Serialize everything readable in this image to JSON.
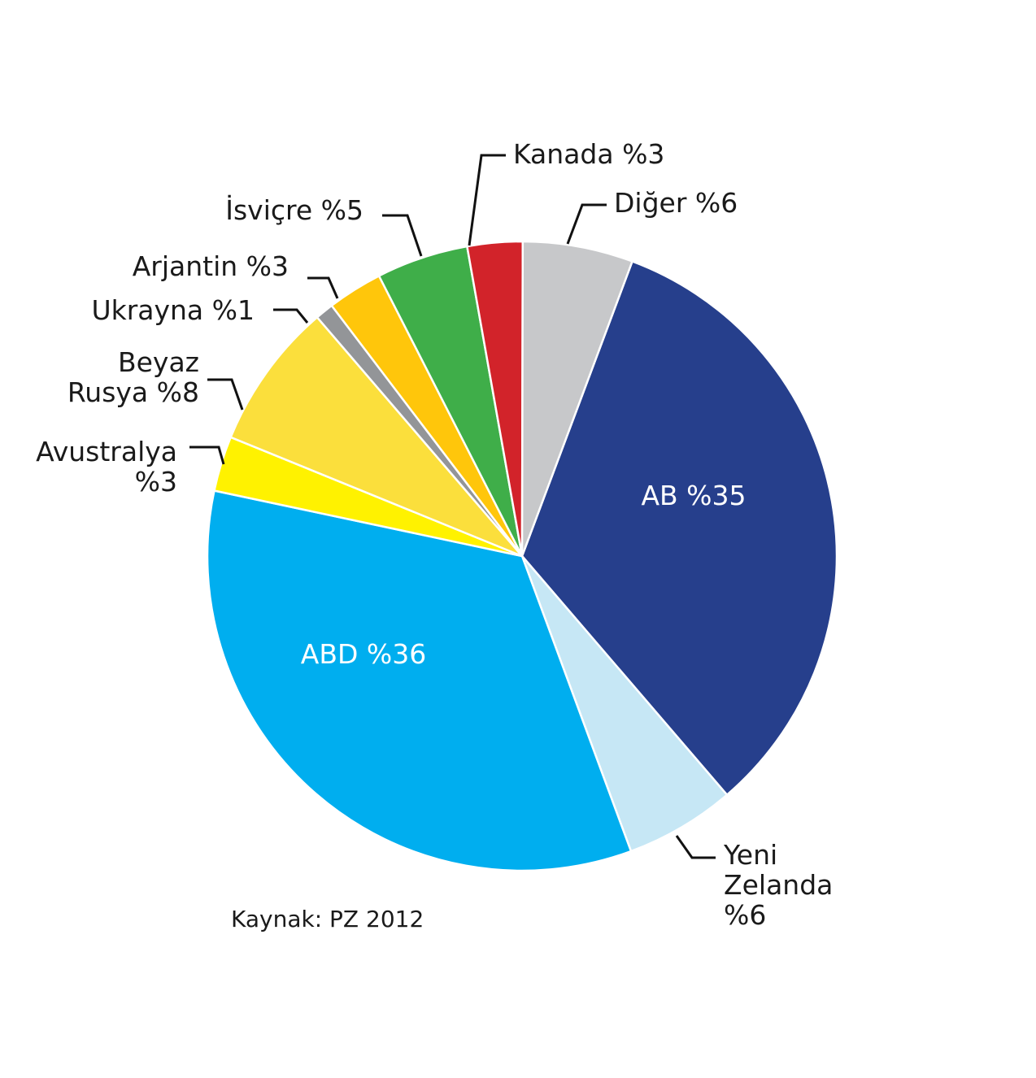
{
  "chart_data": {
    "type": "pie",
    "slices": [
      {
        "label": "AB %35",
        "name": "AB",
        "value": 35,
        "color": "#263f8c"
      },
      {
        "label": [
          "Yeni",
          "Zelanda",
          "%6"
        ],
        "name": "Yeni Zelanda",
        "value": 6,
        "color": "#c6e7f5"
      },
      {
        "label": "ABD %36",
        "name": "ABD",
        "value": 36,
        "color": "#00aeef"
      },
      {
        "label": [
          "Avustralya",
          "%3"
        ],
        "name": "Avustralya",
        "value": 3,
        "color": "#fff200"
      },
      {
        "label": [
          "Beyaz",
          "Rusya %8"
        ],
        "name": "Beyaz Rusya",
        "value": 8,
        "color": "#fbdf3c"
      },
      {
        "label": "Ukrayna %1",
        "name": "Ukrayna",
        "value": 1,
        "color": "#939598"
      },
      {
        "label": "Arjantin %3",
        "name": "Arjantin",
        "value": 3,
        "color": "#ffc60b"
      },
      {
        "label": "İsviçre %5",
        "name": "İsviçre",
        "value": 5,
        "color": "#3fae49"
      },
      {
        "label": "Kanada %3",
        "name": "Kanada",
        "value": 3,
        "color": "#d2232a"
      },
      {
        "label": "Diğer %6",
        "name": "Diğer",
        "value": 6,
        "color": "#c7c8ca"
      }
    ],
    "source": "Kaynak: PZ 2012"
  }
}
